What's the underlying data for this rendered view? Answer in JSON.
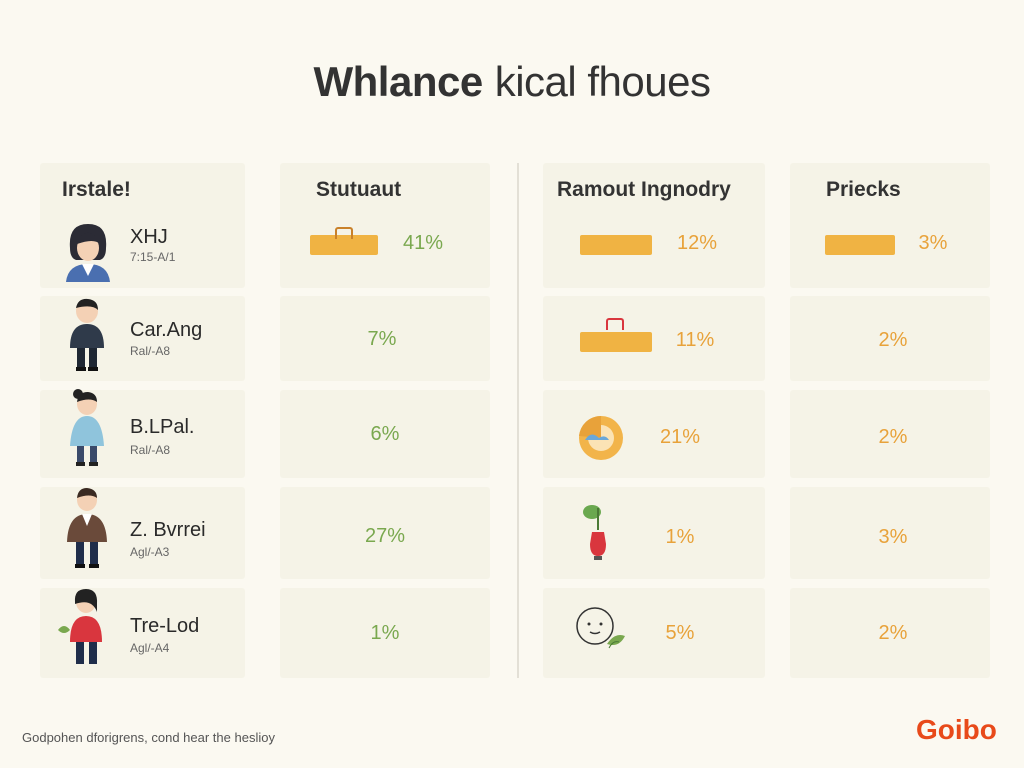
{
  "title": {
    "bold": "Whlance",
    "rest": "kical fhoues"
  },
  "columns": [
    "Irstale!",
    "Stutuaut",
    "Ramout Ingnodry",
    "Priecks"
  ],
  "rows": [
    {
      "name": "XHJ",
      "sub": "7:15-A/1",
      "col1": "41%",
      "col2": "12%",
      "col3": "3%"
    },
    {
      "name": "Car.Ang",
      "sub": "Ral/-A8",
      "col1": "7%",
      "col2": "11%",
      "col3": "2%"
    },
    {
      "name": "B.LPal.",
      "sub": "Ral/-A8",
      "col1": "6%",
      "col2": "21%",
      "col3": "2%"
    },
    {
      "name": "Z. Bvrrei",
      "sub": "Agl/-A3",
      "col1": "27%",
      "col2": "1%",
      "col3": "3%"
    },
    {
      "name": "Tre-Lod",
      "sub": "Agl/-A4",
      "col1": "1%",
      "col2": "5%",
      "col3": "2%"
    }
  ],
  "footer": "Godpohen dforigrens, cond hear the heslioy",
  "logo": "Goibo",
  "colors": {
    "green": "#7aa84f",
    "orange": "#e8a23a",
    "bar": "#f0b343",
    "logo": "#e84a1a"
  }
}
